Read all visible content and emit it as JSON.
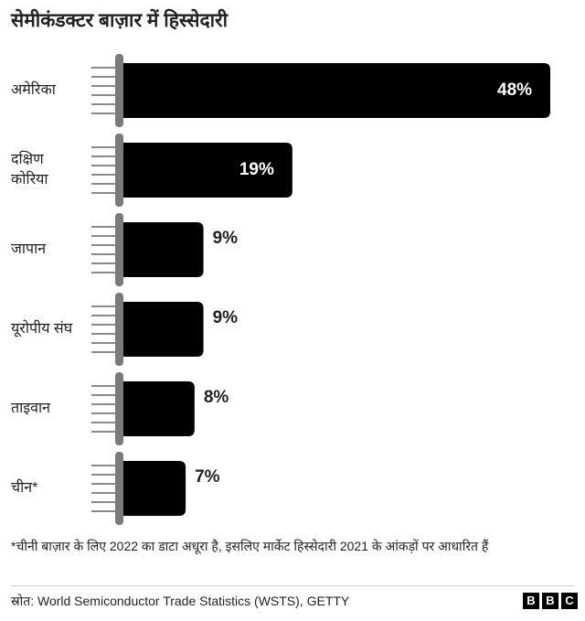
{
  "chart_data": {
    "type": "bar",
    "orientation": "horizontal",
    "title": "सेमीकंडक्टर बाज़ार में हिस्सेदारी",
    "categories": [
      "अमेरिका",
      "दक्षिण कोरिया",
      "जापान",
      "यूरोपीय संघ",
      "ताइवान",
      "चीन*"
    ],
    "values": [
      48,
      19,
      9,
      9,
      8,
      7
    ],
    "value_labels": [
      "48%",
      "19%",
      "9%",
      "9%",
      "8%",
      "7%"
    ],
    "color": "#000000",
    "footnote": "*चीनी बाज़ार के लिए 2022 का डाटा अधूरा है, इसलिए मार्केट हिस्सेदारी 2021 के आंकड़ों पर आधारित हैं",
    "source": "स्रोत: World Semiconductor Trade Statistics (WSTS), GETTY",
    "logo": [
      "B",
      "B",
      "C"
    ]
  }
}
